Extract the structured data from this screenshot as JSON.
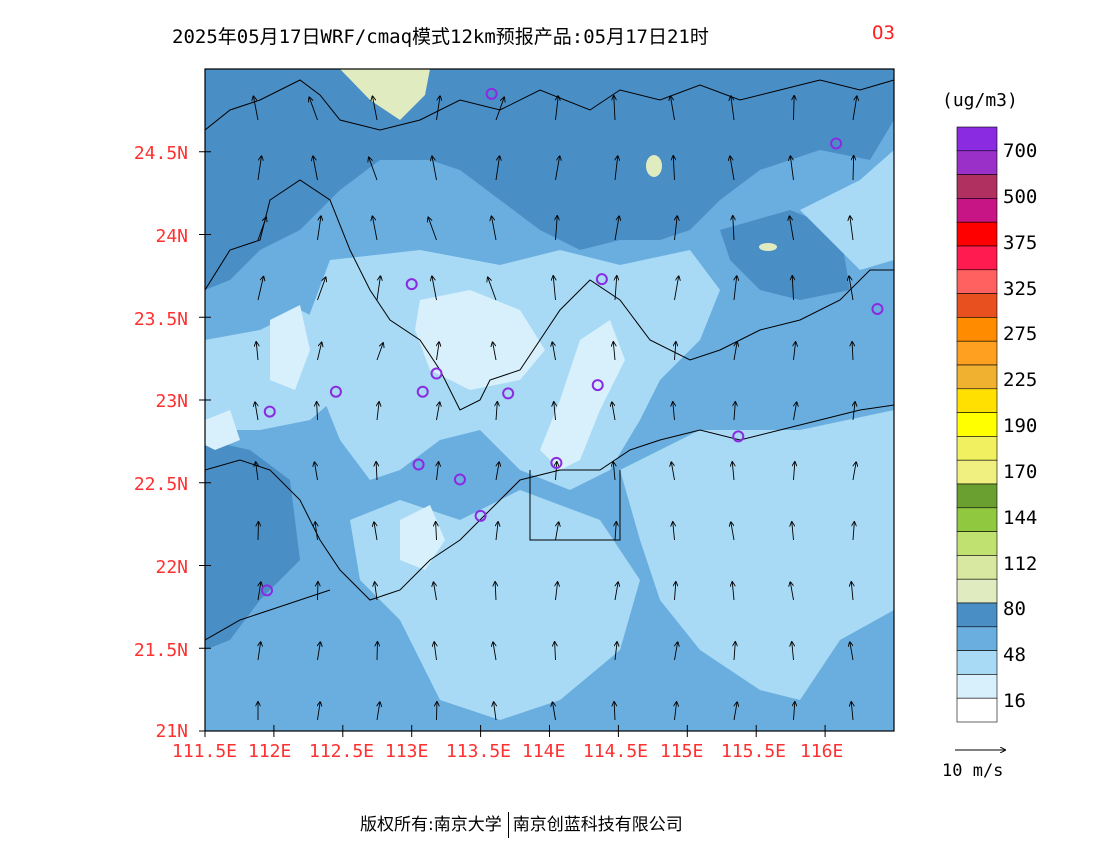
{
  "title": {
    "main": "2025年05月17日WRF/cmaq模式12km预报产品:05月17日21时",
    "variable": "O3"
  },
  "axes": {
    "y_ticks": [
      "24.5N",
      "24N",
      "23.5N",
      "23N",
      "22.5N",
      "22N",
      "21.5N",
      "21N"
    ],
    "x_ticks": [
      "111.5E",
      "112E",
      "112.5E",
      "113E",
      "113.5E",
      "114E",
      "114.5E",
      "115E",
      "115.5E",
      "116E"
    ]
  },
  "colorbar": {
    "unit": "(ug/m3)",
    "labels": [
      "700",
      "500",
      "375",
      "325",
      "275",
      "225",
      "190",
      "170",
      "144",
      "112",
      "80",
      "48",
      "16"
    ],
    "colors": [
      "#8a2be2",
      "#9b30c8",
      "#b03060",
      "#c71585",
      "#ff0000",
      "#ff1a4f",
      "#ff6060",
      "#e85020",
      "#ff8c00",
      "#ffa020",
      "#f0b030",
      "#ffe000",
      "#ffff00",
      "#f0f060",
      "#f0f080",
      "#6aa030",
      "#90c840",
      "#c0e070",
      "#d8e8a0",
      "#e0ecc0",
      "#4a8ec6",
      "#6aaee0",
      "#a8daf5",
      "#d8f0fc",
      "#ffffff"
    ]
  },
  "vector_legend": {
    "label": "10 m/s"
  },
  "footer": {
    "left": "版权所有:南京大学",
    "right": "南京创蓝科技有限公司"
  },
  "map_data": {
    "extent": {
      "lon": [
        111.5,
        116.5
      ],
      "lat": [
        21,
        25
      ]
    },
    "fill_colors": {
      "dark": "#4a8ec6",
      "mid": "#6aaee0",
      "light": "#a8daf5",
      "pale": "#d8f0fc",
      "green": "#e0ecc0"
    },
    "stations": [
      {
        "lon": 113.58,
        "lat": 24.85
      },
      {
        "lon": 116.08,
        "lat": 24.55
      },
      {
        "lon": 113.0,
        "lat": 23.7
      },
      {
        "lon": 114.38,
        "lat": 23.73
      },
      {
        "lon": 116.38,
        "lat": 23.55
      },
      {
        "lon": 112.45,
        "lat": 23.05
      },
      {
        "lon": 113.18,
        "lat": 23.16
      },
      {
        "lon": 113.08,
        "lat": 23.05
      },
      {
        "lon": 113.7,
        "lat": 23.04
      },
      {
        "lon": 114.35,
        "lat": 23.09
      },
      {
        "lon": 111.97,
        "lat": 22.93
      },
      {
        "lon": 115.37,
        "lat": 22.78
      },
      {
        "lon": 113.05,
        "lat": 22.61
      },
      {
        "lon": 113.35,
        "lat": 22.52
      },
      {
        "lon": 114.05,
        "lat": 22.62
      },
      {
        "lon": 113.5,
        "lat": 22.3
      },
      {
        "lon": 111.95,
        "lat": 21.85
      }
    ]
  }
}
